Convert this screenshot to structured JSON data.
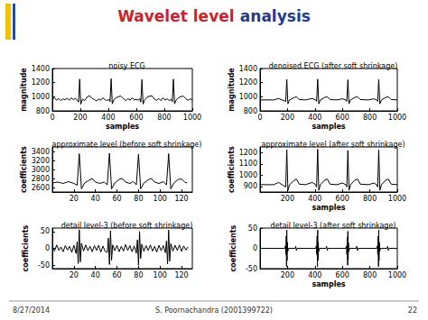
{
  "slide": {
    "title": [
      "Wavelet level",
      "analysis"
    ],
    "footer": [
      "8/27/2014",
      "S. Poornachandra (2001399722)",
      "22"
    ]
  },
  "chart_data": [
    {
      "type": "line",
      "title": "noisy ECG",
      "x_label": "samples",
      "y_label": "magnitude",
      "color": "#000000",
      "grid": false,
      "xlim": [
        0,
        1000
      ],
      "xticks": [
        0,
        200,
        400,
        600,
        800,
        1000
      ],
      "ylim": [
        800,
        1400
      ],
      "yticks": [
        800,
        1000,
        1200,
        1400
      ],
      "x": [
        0,
        15,
        30,
        45,
        60,
        75,
        90,
        105,
        120,
        135,
        150,
        165,
        180,
        187,
        195,
        203,
        215,
        230,
        245,
        265,
        285,
        300,
        315,
        330,
        345,
        360,
        375,
        390,
        405,
        412,
        420,
        428,
        440,
        455,
        470,
        490,
        510,
        525,
        540,
        555,
        570,
        585,
        600,
        615,
        625,
        632,
        640,
        648,
        660,
        675,
        690,
        710,
        730,
        745,
        760,
        775,
        790,
        805,
        820,
        835,
        850,
        857,
        865,
        873,
        885,
        900,
        915,
        935,
        955,
        970,
        985,
        1000
      ],
      "values": [
        960,
        985,
        950,
        975,
        945,
        970,
        955,
        980,
        950,
        985,
        960,
        975,
        950,
        925,
        1250,
        895,
        965,
        945,
        990,
        1015,
        975,
        960,
        940,
        970,
        950,
        985,
        960,
        945,
        965,
        930,
        1255,
        900,
        960,
        985,
        1000,
        1010,
        970,
        945,
        975,
        950,
        985,
        955,
        965,
        950,
        975,
        925,
        1245,
        895,
        960,
        990,
        1005,
        1015,
        965,
        950,
        975,
        945,
        985,
        955,
        970,
        945,
        965,
        930,
        1250,
        900,
        955,
        985,
        1000,
        1010,
        970,
        950,
        970,
        955
      ]
    },
    {
      "type": "line",
      "title": "denoised ECG (after soft shrinkage)",
      "x_label": "samples",
      "y_label": "magnitude",
      "color": "#000000",
      "grid": false,
      "xlim": [
        0,
        1000
      ],
      "xticks": [
        0,
        200,
        400,
        600,
        800,
        1000
      ],
      "ylim": [
        800,
        1400
      ],
      "yticks": [
        800,
        1000,
        1200,
        1400
      ],
      "x": [
        0,
        40,
        100,
        135,
        160,
        187,
        195,
        203,
        215,
        245,
        265,
        285,
        330,
        380,
        405,
        412,
        420,
        428,
        440,
        470,
        490,
        510,
        560,
        600,
        625,
        632,
        640,
        648,
        660,
        690,
        710,
        730,
        790,
        830,
        850,
        857,
        865,
        873,
        885,
        915,
        935,
        955,
        1000
      ],
      "values": [
        955,
        955,
        955,
        975,
        955,
        935,
        1245,
        900,
        955,
        985,
        1000,
        960,
        955,
        975,
        955,
        935,
        1250,
        900,
        955,
        990,
        1000,
        960,
        955,
        970,
        955,
        935,
        1240,
        900,
        955,
        990,
        1000,
        960,
        955,
        970,
        955,
        935,
        1245,
        900,
        955,
        990,
        1000,
        960,
        955
      ]
    },
    {
      "type": "line",
      "title": "approximate level (before soft shrinkage)",
      "y_label": "coefficients",
      "color": "#000000",
      "grid": false,
      "xlim": [
        0,
        130
      ],
      "xticks": [
        20,
        40,
        60,
        80,
        100,
        120
      ],
      "ylim": [
        2500,
        3500
      ],
      "yticks": [
        2600,
        2800,
        3000,
        3200,
        3400
      ],
      "x": [
        0,
        5,
        10,
        15,
        20,
        23,
        25,
        27,
        30,
        34,
        37,
        40,
        44,
        48,
        51,
        53,
        55,
        58,
        62,
        65,
        68,
        72,
        75,
        78,
        80,
        82,
        85,
        89,
        92,
        95,
        99,
        103,
        106,
        108,
        110,
        113,
        117,
        120,
        123,
        125
      ],
      "values": [
        2700,
        2720,
        2690,
        2730,
        2690,
        2650,
        3350,
        2570,
        2700,
        2760,
        2800,
        2720,
        2690,
        2720,
        2660,
        3360,
        2570,
        2700,
        2780,
        2800,
        2720,
        2690,
        2730,
        2660,
        3340,
        2570,
        2700,
        2770,
        2800,
        2720,
        2690,
        2730,
        2660,
        3350,
        2570,
        2700,
        2780,
        2790,
        2720,
        2700
      ]
    },
    {
      "type": "line",
      "title": "approximate level (after soft shrinkage)",
      "x_label": "samples",
      "y_label": "coefficients",
      "color": "#000000",
      "grid": false,
      "xlim": [
        0,
        1000
      ],
      "xticks": [
        200,
        400,
        600,
        800,
        1000
      ],
      "ylim": [
        850,
        1250
      ],
      "yticks": [
        900,
        1000,
        1100,
        1200
      ],
      "x": [
        0,
        40,
        100,
        135,
        160,
        187,
        195,
        203,
        215,
        245,
        265,
        285,
        330,
        380,
        405,
        412,
        420,
        428,
        440,
        470,
        490,
        510,
        560,
        600,
        625,
        632,
        640,
        648,
        660,
        690,
        710,
        730,
        790,
        830,
        850,
        857,
        865,
        873,
        885,
        915,
        935,
        955,
        1000
      ],
      "values": [
        915,
        915,
        915,
        935,
        915,
        895,
        1225,
        865,
        915,
        950,
        965,
        920,
        915,
        935,
        915,
        895,
        1230,
        865,
        915,
        955,
        965,
        920,
        915,
        930,
        915,
        895,
        1220,
        865,
        915,
        955,
        965,
        920,
        915,
        930,
        915,
        895,
        1225,
        865,
        915,
        955,
        965,
        920,
        915
      ]
    },
    {
      "type": "line",
      "title": "detail level-3 (before soft shrinkage)",
      "y_label": "coefficients",
      "color": "#000000",
      "grid": false,
      "xlim": [
        0,
        130
      ],
      "xticks": [
        20,
        40,
        60,
        80,
        100,
        120
      ],
      "ylim": [
        -60,
        60
      ],
      "yticks": [
        -50,
        0,
        50
      ],
      "x": [
        0,
        2,
        4,
        6,
        8,
        10,
        12,
        14,
        16,
        18,
        20,
        22,
        23,
        24,
        25,
        26,
        27,
        29,
        31,
        33,
        35,
        37,
        39,
        41,
        43,
        45,
        47,
        49,
        51,
        52,
        53,
        54,
        55,
        56,
        58,
        60,
        62,
        64,
        66,
        68,
        70,
        72,
        74,
        76,
        78,
        79,
        80,
        81,
        82,
        83,
        85,
        87,
        89,
        91,
        93,
        95,
        97,
        99,
        101,
        103,
        105,
        106,
        107,
        108,
        109,
        110,
        112,
        114,
        116,
        118,
        120,
        122,
        124,
        126
      ],
      "values": [
        5,
        -8,
        10,
        -6,
        4,
        -10,
        8,
        -5,
        6,
        -12,
        9,
        -15,
        20,
        -45,
        55,
        -40,
        15,
        -8,
        10,
        -7,
        6,
        -10,
        8,
        -6,
        9,
        -11,
        7,
        -9,
        -12,
        30,
        -48,
        52,
        -35,
        10,
        -7,
        9,
        -10,
        6,
        -8,
        11,
        -6,
        8,
        -10,
        7,
        -14,
        25,
        -50,
        50,
        -30,
        12,
        -9,
        8,
        -6,
        10,
        -8,
        6,
        -11,
        9,
        -7,
        8,
        -13,
        22,
        -46,
        54,
        -38,
        14,
        -8,
        9,
        -6,
        10,
        -9,
        7,
        -5,
        4
      ]
    },
    {
      "type": "line",
      "title": "detail level-3 (after soft shrinkage)",
      "x_label": "samples",
      "y_label": "coefficients",
      "color": "#000000",
      "grid": false,
      "xlim": [
        0,
        1000
      ],
      "xticks": [
        200,
        400,
        600,
        800,
        1000
      ],
      "ylim": [
        -50,
        50
      ],
      "yticks": [
        -50,
        0,
        50
      ],
      "x": [
        0,
        180,
        185,
        188,
        191,
        193,
        195,
        197,
        199,
        202,
        207,
        255,
        260,
        265,
        270,
        405,
        410,
        413,
        416,
        418,
        420,
        422,
        424,
        427,
        432,
        480,
        485,
        490,
        495,
        625,
        630,
        633,
        636,
        638,
        640,
        642,
        644,
        647,
        652,
        700,
        705,
        710,
        715,
        850,
        855,
        858,
        861,
        863,
        865,
        867,
        869,
        872,
        877,
        925,
        930,
        935,
        940,
        1000
      ],
      "values": [
        0,
        0,
        6,
        -15,
        30,
        -45,
        45,
        -30,
        15,
        -8,
        0,
        0,
        5,
        -5,
        0,
        0,
        6,
        -15,
        30,
        -45,
        45,
        -30,
        15,
        -8,
        0,
        0,
        5,
        -5,
        0,
        0,
        6,
        -15,
        28,
        -42,
        42,
        -28,
        14,
        -8,
        0,
        0,
        5,
        -5,
        0,
        0,
        6,
        -15,
        30,
        -45,
        45,
        -30,
        15,
        -8,
        0,
        0,
        5,
        -5,
        0,
        0
      ]
    }
  ]
}
